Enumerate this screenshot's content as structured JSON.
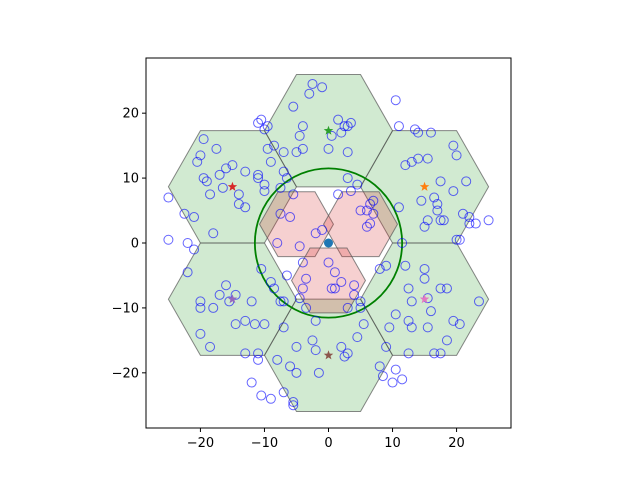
{
  "chart_data": {
    "type": "scatter",
    "title": "",
    "xlabel": "",
    "ylabel": "",
    "xlim": [
      -28.5,
      28.5
    ],
    "ylim": [
      -28.5,
      28.5
    ],
    "x_ticks": [
      -20,
      -10,
      0,
      10,
      20
    ],
    "y_ticks": [
      -20,
      -10,
      0,
      10,
      20
    ],
    "x_tick_labels": [
      "−20",
      "−10",
      "0",
      "10",
      "20"
    ],
    "y_tick_labels": [
      "−20",
      "−10",
      "0",
      "10",
      "20"
    ],
    "grid": false,
    "legend": "none",
    "colors": {
      "outer_hex_fill": "#2ca02c",
      "inner_hex_fill": "#d62728",
      "hex_edge": "#555555",
      "circle": "#008000",
      "scatter_edge": "#0000ff",
      "center_point": "#1f77b4"
    },
    "circle": {
      "center": [
        0,
        0
      ],
      "radius": 11.5
    },
    "center_point": [
      0,
      0
    ],
    "outer_hexagons": {
      "circumradius": 10,
      "centers": [
        [
          0,
          17.3
        ],
        [
          15,
          8.66
        ],
        [
          15,
          -8.66
        ],
        [
          0,
          -17.3
        ],
        [
          -15,
          -8.66
        ],
        [
          -15,
          8.66
        ]
      ]
    },
    "inner_hexagons": {
      "circumradius": 5.77,
      "centers": [
        [
          -5,
          2.89
        ],
        [
          5,
          2.89
        ],
        [
          0,
          -5.77
        ]
      ]
    },
    "stars": [
      {
        "x": -15,
        "y": 8.66,
        "color": "#d62728"
      },
      {
        "x": 0,
        "y": 17.3,
        "color": "#2ca02c"
      },
      {
        "x": 15,
        "y": 8.66,
        "color": "#ff7f0e"
      },
      {
        "x": 15,
        "y": -8.66,
        "color": "#e377c2"
      },
      {
        "x": 0,
        "y": -17.3,
        "color": "#8c564b"
      },
      {
        "x": -15,
        "y": -8.66,
        "color": "#9467bd"
      }
    ],
    "points": [
      [
        -25,
        7
      ],
      [
        -25,
        0.5
      ],
      [
        -22.5,
        4.5
      ],
      [
        -22,
        0
      ],
      [
        -21,
        4
      ],
      [
        -21,
        -1
      ],
      [
        -22,
        -4.5
      ],
      [
        -20.5,
        12.5
      ],
      [
        -20,
        13.5
      ],
      [
        -19.5,
        16
      ],
      [
        -19.5,
        10
      ],
      [
        -19,
        9.5
      ],
      [
        -18.5,
        7.5
      ],
      [
        -17.5,
        14.5
      ],
      [
        -17,
        10.5
      ],
      [
        -18,
        1.5
      ],
      [
        -16,
        11.5
      ],
      [
        -16.5,
        8.5
      ],
      [
        -15,
        12
      ],
      [
        -14,
        7.5
      ],
      [
        -13,
        11
      ],
      [
        -13,
        5.5
      ],
      [
        -11,
        10.5
      ],
      [
        -11,
        10
      ],
      [
        -11,
        18.5
      ],
      [
        -10.5,
        19
      ],
      [
        -10,
        17.5
      ],
      [
        -9.5,
        18
      ],
      [
        -9.5,
        14.5
      ],
      [
        -10,
        8
      ],
      [
        -9,
        12.5
      ],
      [
        -8.5,
        15
      ],
      [
        -7,
        14
      ],
      [
        -7,
        11
      ],
      [
        -7.5,
        4.5
      ],
      [
        -6.5,
        10
      ],
      [
        -5.5,
        21
      ],
      [
        -5,
        14
      ],
      [
        -4,
        14.5
      ],
      [
        -4.5,
        16.5
      ],
      [
        -4,
        18
      ],
      [
        -3,
        23
      ],
      [
        -2.5,
        24.5
      ],
      [
        -1,
        24
      ],
      [
        -7.5,
        8.5
      ],
      [
        -10,
        9
      ],
      [
        -8,
        0
      ],
      [
        -20,
        -9
      ],
      [
        -20,
        -10
      ],
      [
        -20,
        -14
      ],
      [
        -18.5,
        -16
      ],
      [
        -18,
        -10
      ],
      [
        -17,
        -8
      ],
      [
        -16,
        -6.5
      ],
      [
        -14.5,
        -8
      ],
      [
        -14.5,
        -12.5
      ],
      [
        -13,
        -17
      ],
      [
        -12,
        -9
      ],
      [
        -11.5,
        -12.5
      ],
      [
        -11,
        -18
      ],
      [
        -10,
        -12.5
      ],
      [
        -10.5,
        -4
      ],
      [
        -9,
        -6
      ],
      [
        -8.5,
        -7
      ],
      [
        -7.5,
        -9
      ],
      [
        -7,
        -13
      ],
      [
        -6,
        -19
      ],
      [
        -5,
        -16
      ],
      [
        -5,
        -20
      ],
      [
        -5.5,
        -24.5
      ],
      [
        -5.5,
        -25
      ],
      [
        -4.5,
        -8.5
      ],
      [
        -4,
        -7
      ],
      [
        -4,
        -3
      ],
      [
        -3.5,
        -5.5
      ],
      [
        -3.5,
        -10
      ],
      [
        -2.5,
        -15
      ],
      [
        -2,
        -12
      ],
      [
        -2,
        -16.5
      ],
      [
        -1.5,
        -20
      ],
      [
        -12,
        -21.5
      ],
      [
        -10.5,
        -23.5
      ],
      [
        -11,
        -17
      ],
      [
        -9,
        -24
      ],
      [
        -7,
        -23
      ],
      [
        -8,
        -18
      ],
      [
        -6.5,
        -5
      ],
      [
        -7,
        -9
      ],
      [
        -6,
        4
      ],
      [
        -5.5,
        7.5
      ],
      [
        -4.5,
        -0.5
      ],
      [
        -2,
        1.5
      ],
      [
        -1,
        2
      ],
      [
        0,
        -3
      ],
      [
        0.5,
        -7
      ],
      [
        1,
        -7
      ],
      [
        1,
        -4.5
      ],
      [
        2,
        -6
      ],
      [
        2,
        -16
      ],
      [
        2.5,
        -17.5
      ],
      [
        3,
        -17
      ],
      [
        3,
        -10
      ],
      [
        4,
        -8
      ],
      [
        4,
        -6.5
      ],
      [
        5,
        -9
      ],
      [
        5,
        -10
      ],
      [
        5.5,
        -12.5
      ],
      [
        0,
        14.5
      ],
      [
        0.5,
        16.5
      ],
      [
        1.5,
        19
      ],
      [
        2,
        17
      ],
      [
        2.5,
        18
      ],
      [
        3,
        18
      ],
      [
        3.5,
        18.5
      ],
      [
        3,
        14
      ],
      [
        1.5,
        7.5
      ],
      [
        3,
        10
      ],
      [
        3.5,
        8
      ],
      [
        4.5,
        9
      ],
      [
        5,
        5
      ],
      [
        6,
        5
      ],
      [
        6,
        2.5
      ],
      [
        6.5,
        6
      ],
      [
        6.5,
        3
      ],
      [
        7,
        6.5
      ],
      [
        7,
        4.5
      ],
      [
        8,
        -4
      ],
      [
        9,
        -3.5
      ],
      [
        10.5,
        22
      ],
      [
        11,
        18
      ],
      [
        11,
        5.5
      ],
      [
        11.5,
        0
      ],
      [
        12,
        -3.5
      ],
      [
        12.5,
        -7
      ],
      [
        12.5,
        -12
      ],
      [
        12.5,
        -17
      ],
      [
        11.5,
        -21
      ],
      [
        10.5,
        -19.5
      ],
      [
        10,
        -21.5
      ],
      [
        8.5,
        -20.5
      ],
      [
        8,
        -19
      ],
      [
        9,
        -16
      ],
      [
        9.5,
        -13
      ],
      [
        10.5,
        -11
      ],
      [
        13,
        -9
      ],
      [
        13,
        -13
      ],
      [
        13.5,
        17.5
      ],
      [
        14,
        13
      ],
      [
        14.5,
        6.5
      ],
      [
        15,
        -4
      ],
      [
        15,
        -5.5
      ],
      [
        15.5,
        -8.5
      ],
      [
        15.5,
        -13
      ],
      [
        15.5,
        13
      ],
      [
        15,
        2.5
      ],
      [
        15.5,
        3.5
      ],
      [
        16,
        17
      ],
      [
        16,
        -10.5
      ],
      [
        16.5,
        7
      ],
      [
        17,
        6
      ],
      [
        17,
        5
      ],
      [
        17.5,
        3.5
      ],
      [
        17.5,
        -7
      ],
      [
        17.5,
        -17
      ],
      [
        18.5,
        -7
      ],
      [
        16.5,
        -17
      ],
      [
        17.5,
        9.5
      ],
      [
        18,
        3.5
      ],
      [
        18.5,
        -15
      ],
      [
        19.5,
        15
      ],
      [
        19.5,
        8
      ],
      [
        20,
        13.5
      ],
      [
        20,
        0.5
      ],
      [
        20.5,
        0.5
      ],
      [
        20.5,
        -12.5
      ],
      [
        21,
        4.5
      ],
      [
        21.5,
        9.5
      ],
      [
        22,
        4
      ],
      [
        22,
        3
      ],
      [
        23,
        3
      ],
      [
        23.5,
        -9
      ],
      [
        25,
        3.5
      ],
      [
        19.5,
        -12
      ],
      [
        -15.5,
        -9
      ],
      [
        -13,
        -12
      ],
      [
        -14,
        6
      ],
      [
        12,
        12
      ],
      [
        13,
        12.5
      ],
      [
        14,
        17
      ],
      [
        4.5,
        -14.5
      ]
    ]
  }
}
